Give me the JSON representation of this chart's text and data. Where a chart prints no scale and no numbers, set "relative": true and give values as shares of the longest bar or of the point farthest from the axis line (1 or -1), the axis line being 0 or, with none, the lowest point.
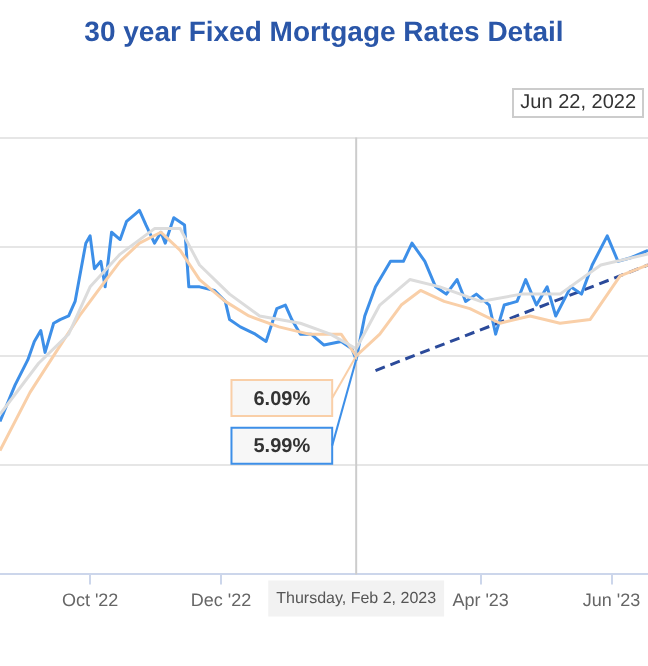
{
  "chart_data": {
    "type": "line",
    "title": "30 year Fixed Mortgage Rates Detail",
    "relative": true,
    "grid": "y",
    "legend": false,
    "marker": "none",
    "xlim": [
      "2022-08-20",
      "2023-06-18"
    ],
    "xticks": [
      {
        "value": "2022-10-01",
        "label": "Oct '22"
      },
      {
        "value": "2022-12-01",
        "label": "Dec '22"
      },
      {
        "value": "2023-04-01",
        "label": "Apr '23"
      },
      {
        "value": "2023-06-01",
        "label": "Jun '23"
      }
    ],
    "series": [
      {
        "color": "#dcdcdc",
        "x": [
          "2022-08-20",
          "2022-09-07",
          "2022-09-21",
          "2022-10-01",
          "2022-10-15",
          "2022-10-31",
          "2022-11-12",
          "2022-11-21",
          "2022-12-05",
          "2022-12-19",
          "2023-01-07",
          "2023-01-21",
          "2023-02-02",
          "2023-02-13",
          "2023-02-27",
          "2023-03-13",
          "2023-04-01",
          "2023-04-20",
          "2023-05-08",
          "2023-05-27",
          "2023-06-18"
        ],
        "values": [
          0.44,
          0.58,
          0.66,
          0.79,
          0.88,
          0.95,
          0.95,
          0.85,
          0.77,
          0.71,
          0.69,
          0.66,
          0.62,
          0.74,
          0.81,
          0.79,
          0.75,
          0.77,
          0.77,
          0.85,
          0.88
        ]
      },
      {
        "color": "#f9cfa8",
        "x": [
          "2022-08-20",
          "2022-09-03",
          "2022-09-15",
          "2022-09-26",
          "2022-10-06",
          "2022-10-15",
          "2022-10-24",
          "2022-11-03",
          "2022-11-12",
          "2022-11-21",
          "2022-12-03",
          "2022-12-14",
          "2022-12-28",
          "2023-01-11",
          "2023-01-26",
          "2023-02-02",
          "2023-02-13",
          "2023-02-23",
          "2023-03-04",
          "2023-03-15",
          "2023-03-27",
          "2023-04-10",
          "2023-04-24",
          "2023-05-08",
          "2023-05-22",
          "2023-06-05",
          "2023-06-18"
        ],
        "values": [
          0.34,
          0.5,
          0.61,
          0.71,
          0.79,
          0.86,
          0.91,
          0.94,
          0.89,
          0.81,
          0.75,
          0.71,
          0.68,
          0.66,
          0.66,
          0.6,
          0.66,
          0.74,
          0.78,
          0.75,
          0.73,
          0.69,
          0.71,
          0.69,
          0.7,
          0.82,
          0.85
        ]
      },
      {
        "color": "#3d8fe8",
        "x": [
          "2022-08-20",
          "2022-08-27",
          "2022-09-02",
          "2022-09-05",
          "2022-09-08",
          "2022-09-10",
          "2022-09-14",
          "2022-09-17",
          "2022-09-21",
          "2022-09-24",
          "2022-09-29",
          "2022-10-01",
          "2022-10-03",
          "2022-10-06",
          "2022-10-08",
          "2022-10-11",
          "2022-10-15",
          "2022-10-18",
          "2022-10-22",
          "2022-10-24",
          "2022-10-27",
          "2022-10-31",
          "2022-11-03",
          "2022-11-05",
          "2022-11-09",
          "2022-11-14",
          "2022-11-16",
          "2022-11-21",
          "2022-11-28",
          "2022-12-03",
          "2022-12-05",
          "2022-12-10",
          "2022-12-17",
          "2022-12-22",
          "2022-12-27",
          "2022-12-31",
          "2023-01-03",
          "2023-01-07",
          "2023-01-12",
          "2023-01-18",
          "2023-01-26",
          "2023-01-31",
          "2023-02-02",
          "2023-02-06",
          "2023-02-11",
          "2023-02-18",
          "2023-02-24",
          "2023-02-28",
          "2023-03-06",
          "2023-03-11",
          "2023-03-16",
          "2023-03-21",
          "2023-03-25",
          "2023-03-30",
          "2023-04-05",
          "2023-04-08",
          "2023-04-12",
          "2023-04-18",
          "2023-04-22",
          "2023-04-27",
          "2023-05-02",
          "2023-05-06",
          "2023-05-13",
          "2023-05-18",
          "2023-05-23",
          "2023-05-30",
          "2023-06-04",
          "2023-06-10",
          "2023-06-18"
        ],
        "values": [
          0.42,
          0.52,
          0.59,
          0.64,
          0.67,
          0.61,
          0.69,
          0.7,
          0.71,
          0.75,
          0.91,
          0.93,
          0.84,
          0.86,
          0.79,
          0.94,
          0.92,
          0.97,
          0.99,
          1,
          0.96,
          0.91,
          0.94,
          0.91,
          0.98,
          0.96,
          0.79,
          0.79,
          0.78,
          0.75,
          0.7,
          0.68,
          0.66,
          0.64,
          0.73,
          0.74,
          0.7,
          0.66,
          0.66,
          0.63,
          0.64,
          0.62,
          0.59,
          0.71,
          0.79,
          0.86,
          0.86,
          0.91,
          0.86,
          0.79,
          0.77,
          0.81,
          0.75,
          0.77,
          0.74,
          0.66,
          0.74,
          0.75,
          0.81,
          0.74,
          0.79,
          0.71,
          0.79,
          0.77,
          0.85,
          0.93,
          0.86,
          0.87,
          0.89
        ]
      },
      {
        "color": "#2b4a9a",
        "line_style": "dashed",
        "x": [
          "2023-02-11",
          "2023-06-18"
        ],
        "values": [
          0.56,
          0.85
        ]
      }
    ],
    "ref_lines": [
      {
        "axis": "x",
        "value": "2023-02-02",
        "label": "Thursday, Feb 2, 2023",
        "color": "#cccccc"
      }
    ],
    "annotations": [
      "Jun 22, 2022",
      {
        "text": "6.09%",
        "x": "2023-02-02",
        "y": 0.6
      },
      {
        "text": "5.99%",
        "x": "2023-02-02",
        "y": 0.59
      }
    ]
  }
}
